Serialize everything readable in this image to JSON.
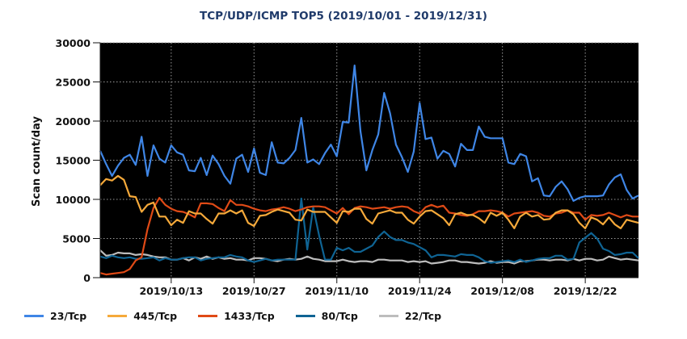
{
  "title": "TCP/UDP/ICMP TOP5 (2019/10/01 - 2019/12/31)",
  "chart_data": {
    "type": "line",
    "title": "TCP/UDP/ICMP TOP5 (2019/10/01 - 2019/12/31)",
    "xlabel": "",
    "ylabel": "Scan count/day",
    "x_start": "2019/10/01",
    "x_end": "2019/12/31",
    "x_ticks": [
      {
        "label": "2019/10/13",
        "day_index": 12
      },
      {
        "label": "2019/10/27",
        "day_index": 26
      },
      {
        "label": "2019/11/10",
        "day_index": 40
      },
      {
        "label": "2019/11/24",
        "day_index": 54
      },
      {
        "label": "2019/12/08",
        "day_index": 68
      },
      {
        "label": "2019/12/22",
        "day_index": 82
      }
    ],
    "y_ticks": [
      0,
      5000,
      10000,
      15000,
      20000,
      25000,
      30000
    ],
    "ylim": [
      0,
      30000
    ],
    "grid": true,
    "background": "#000000",
    "legend_position": "bottom",
    "series": [
      {
        "name": "23/Tcp",
        "color": "#3f86e6",
        "values": [
          16200,
          14500,
          13000,
          14300,
          15300,
          15700,
          14400,
          18000,
          13000,
          16900,
          15200,
          14700,
          16900,
          16000,
          15700,
          13700,
          13600,
          15300,
          13100,
          15600,
          14500,
          13000,
          12000,
          15200,
          15700,
          13500,
          16500,
          13400,
          13100,
          17300,
          14700,
          14600,
          15300,
          16300,
          20400,
          14700,
          15100,
          14500,
          15900,
          17000,
          15500,
          19900,
          19800,
          27100,
          18700,
          13700,
          16300,
          18300,
          23600,
          21000,
          17000,
          15400,
          13500,
          16100,
          22300,
          17700,
          17900,
          15200,
          16200,
          15800,
          14200,
          17100,
          16300,
          16300,
          19300,
          18000,
          17800,
          17800,
          17800,
          14700,
          14500,
          15800,
          15500,
          12300,
          12700,
          10500,
          10400,
          11600,
          12300,
          11300,
          9800,
          10200,
          10400,
          10400,
          10400,
          10500,
          11900,
          12800,
          13200,
          11200,
          10100,
          10500
        ]
      },
      {
        "name": "445/Tcp",
        "color": "#f5a93a",
        "values": [
          11800,
          12600,
          12400,
          13000,
          12500,
          10400,
          10300,
          8400,
          9300,
          9600,
          7800,
          7800,
          6700,
          7400,
          7000,
          8500,
          8200,
          8200,
          7500,
          6900,
          8200,
          8200,
          8600,
          8200,
          8600,
          7000,
          6600,
          7900,
          8000,
          8400,
          8700,
          8500,
          8300,
          7400,
          7300,
          8700,
          8400,
          8400,
          8400,
          7700,
          7000,
          8500,
          8400,
          8800,
          8800,
          7500,
          6900,
          8200,
          8400,
          8600,
          8300,
          8300,
          7400,
          6900,
          7800,
          8500,
          8600,
          8100,
          7600,
          6700,
          8100,
          8300,
          8000,
          8000,
          7600,
          7000,
          8300,
          7900,
          8300,
          7400,
          6300,
          7800,
          8300,
          7800,
          8000,
          7400,
          7500,
          8300,
          8600,
          8600,
          8100,
          7000,
          6300,
          7700,
          7400,
          6800,
          7700,
          6800,
          6300,
          7400,
          7200,
          7000
        ]
      },
      {
        "name": "1433/Tcp",
        "color": "#e04a16",
        "values": [
          600,
          400,
          500,
          600,
          700,
          1100,
          2200,
          2600,
          6200,
          8900,
          10200,
          9300,
          8800,
          8500,
          8400,
          8100,
          7700,
          9500,
          9500,
          9400,
          8900,
          8500,
          9900,
          9300,
          9300,
          9100,
          8800,
          8600,
          8500,
          8700,
          8800,
          9000,
          8800,
          8500,
          8700,
          9000,
          9100,
          9100,
          9000,
          8600,
          8200,
          8900,
          8100,
          8900,
          9100,
          9000,
          8800,
          8900,
          9000,
          8800,
          9000,
          9100,
          9000,
          8500,
          8200,
          9000,
          9300,
          9000,
          9200,
          8300,
          8200,
          8000,
          7900,
          8100,
          8500,
          8500,
          8600,
          8500,
          8300,
          7800,
          8200,
          8300,
          8400,
          8500,
          8300,
          7900,
          7800,
          8200,
          8300,
          8600,
          8300,
          8300,
          7400,
          8000,
          7900,
          8000,
          8300,
          8000,
          7700,
          8000,
          7800,
          7800
        ]
      },
      {
        "name": "80/Tcp",
        "color": "#0f6494",
        "values": [
          2700,
          2500,
          2800,
          2600,
          2500,
          2600,
          2400,
          2400,
          2500,
          2600,
          2200,
          2500,
          2300,
          2300,
          2500,
          2600,
          2600,
          2200,
          2400,
          2500,
          2600,
          2600,
          2900,
          2700,
          2600,
          2200,
          2000,
          2200,
          2400,
          2200,
          2300,
          2300,
          2300,
          2300,
          10100,
          3600,
          9000,
          5400,
          2300,
          2300,
          3800,
          3500,
          3800,
          3300,
          3300,
          3700,
          4100,
          5200,
          5900,
          5200,
          4800,
          4800,
          4500,
          4300,
          3900,
          3500,
          2600,
          2900,
          2900,
          2800,
          2700,
          3000,
          2900,
          2900,
          2600,
          2100,
          1900,
          2000,
          2100,
          2200,
          2000,
          2300,
          2000,
          2200,
          2400,
          2500,
          2500,
          2800,
          2800,
          2300,
          2400,
          4500,
          5100,
          5700,
          5000,
          3700,
          3400,
          2900,
          3000,
          3200,
          3200,
          2500
        ]
      },
      {
        "name": "22/Tcp",
        "color": "#bdbdbd",
        "values": [
          3500,
          2800,
          2900,
          3200,
          3100,
          3100,
          2900,
          3000,
          2900,
          2700,
          2600,
          2600,
          2300,
          2300,
          2500,
          2200,
          2600,
          2400,
          2700,
          2400,
          2600,
          2400,
          2500,
          2300,
          2300,
          2200,
          2500,
          2500,
          2400,
          2200,
          2100,
          2300,
          2400,
          2300,
          2400,
          2700,
          2400,
          2300,
          2100,
          2100,
          2100,
          2300,
          2100,
          2000,
          2100,
          2100,
          2000,
          2300,
          2300,
          2200,
          2200,
          2200,
          2000,
          2100,
          2000,
          2100,
          1800,
          1900,
          2000,
          2200,
          2200,
          2000,
          2000,
          1900,
          1800,
          1900,
          2100,
          1900,
          2000,
          2000,
          1800,
          2100,
          2100,
          2200,
          2300,
          2300,
          2200,
          2300,
          2300,
          2200,
          2400,
          2200,
          2400,
          2400,
          2200,
          2300,
          2700,
          2500,
          2300,
          2400,
          2300,
          2200
        ]
      }
    ]
  },
  "legend": [
    {
      "label": "23/Tcp",
      "color": "#3f86e6"
    },
    {
      "label": "445/Tcp",
      "color": "#f5a93a"
    },
    {
      "label": "1433/Tcp",
      "color": "#e04a16"
    },
    {
      "label": "80/Tcp",
      "color": "#0f6494"
    },
    {
      "label": "22/Tcp",
      "color": "#bdbdbd"
    }
  ]
}
